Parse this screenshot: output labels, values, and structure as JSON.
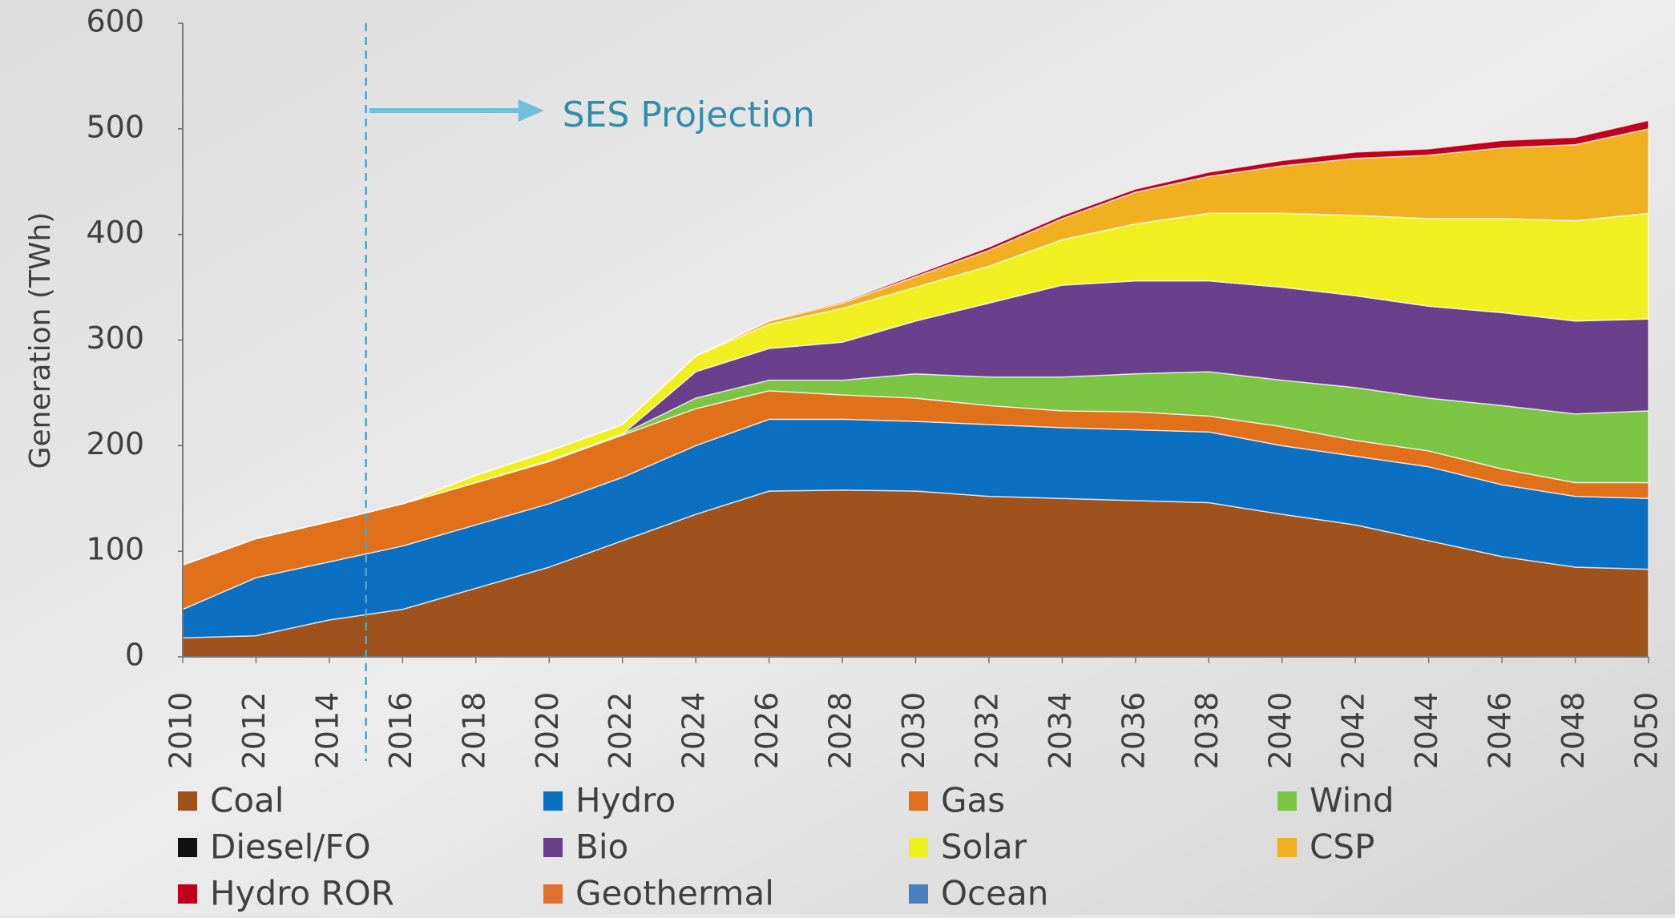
{
  "chart_data": {
    "type": "stacked-area",
    "y_label": "Generation (TWh)",
    "annotation": {
      "text": "SES Projection",
      "x": 2015
    },
    "x": [
      2010,
      2012,
      2014,
      2016,
      2018,
      2020,
      2022,
      2024,
      2026,
      2028,
      2030,
      2032,
      2034,
      2036,
      2038,
      2040,
      2042,
      2044,
      2046,
      2048,
      2050
    ],
    "xlim": [
      2010,
      2050
    ],
    "xticks": [
      2010,
      2012,
      2014,
      2016,
      2018,
      2020,
      2022,
      2024,
      2026,
      2028,
      2030,
      2032,
      2034,
      2036,
      2038,
      2040,
      2042,
      2044,
      2046,
      2048,
      2050
    ],
    "ylim": [
      0,
      600
    ],
    "yticks": [
      0,
      100,
      200,
      300,
      400,
      500,
      600
    ],
    "series": [
      {
        "name": "Coal",
        "color": "#a0521c",
        "values": [
          18,
          20,
          35,
          45,
          65,
          85,
          110,
          135,
          157,
          158,
          157,
          152,
          150,
          148,
          146,
          135,
          125,
          110,
          95,
          85,
          83
        ]
      },
      {
        "name": "Hydro",
        "color": "#0b6fc2",
        "values": [
          27,
          55,
          55,
          60,
          60,
          60,
          60,
          65,
          68,
          67,
          66,
          68,
          67,
          67,
          67,
          65,
          65,
          70,
          68,
          67,
          67
        ]
      },
      {
        "name": "Gas",
        "color": "#e0701a",
        "values": [
          42,
          37,
          38,
          40,
          40,
          40,
          40,
          35,
          27,
          23,
          22,
          18,
          16,
          17,
          15,
          18,
          15,
          15,
          15,
          13,
          15
        ]
      },
      {
        "name": "Wind",
        "color": "#7cc444",
        "values": [
          0,
          0,
          0,
          0,
          0,
          1,
          1,
          10,
          10,
          14,
          23,
          27,
          32,
          36,
          42,
          44,
          50,
          50,
          60,
          65,
          68
        ]
      },
      {
        "name": "Diesel/FO",
        "color": "#111111",
        "values": [
          0,
          0,
          0,
          0,
          0,
          0,
          0,
          0,
          0,
          0,
          0,
          0,
          0,
          0,
          0,
          0,
          0,
          0,
          0,
          0,
          0
        ]
      },
      {
        "name": "Bio",
        "color": "#6a3f8c",
        "values": [
          0,
          0,
          0,
          0,
          0,
          0,
          0,
          25,
          30,
          36,
          50,
          70,
          87,
          88,
          86,
          88,
          87,
          87,
          88,
          88,
          87
        ]
      },
      {
        "name": "Solar",
        "color": "#f0f020",
        "values": [
          0,
          0,
          0,
          0,
          7,
          9,
          9,
          15,
          23,
          32,
          32,
          35,
          43,
          54,
          64,
          70,
          76,
          83,
          89,
          95,
          100
        ]
      },
      {
        "name": "CSP",
        "color": "#f0b020",
        "values": [
          0,
          0,
          0,
          0,
          0,
          0,
          0,
          0,
          3,
          5,
          10,
          15,
          20,
          30,
          35,
          45,
          54,
          60,
          67,
          72,
          80
        ]
      },
      {
        "name": "Hydro ROR",
        "color": "#c0001a",
        "values": [
          0,
          0,
          0,
          0,
          0,
          0,
          0,
          0,
          0,
          1,
          2,
          3,
          3,
          3,
          4,
          5,
          6,
          6,
          7,
          7,
          8
        ]
      },
      {
        "name": "Geothermal",
        "color": "#e07030",
        "values": [
          0,
          0,
          0,
          0,
          0,
          0,
          0,
          0,
          0,
          0,
          0,
          0,
          0,
          0,
          0,
          0,
          0,
          0,
          0,
          0,
          0
        ]
      },
      {
        "name": "Ocean",
        "color": "#4a7fc0",
        "values": [
          0,
          0,
          0,
          0,
          0,
          0,
          0,
          0,
          0,
          0,
          0,
          0,
          0,
          0,
          0,
          0,
          0,
          0,
          0,
          0,
          0
        ]
      }
    ]
  }
}
